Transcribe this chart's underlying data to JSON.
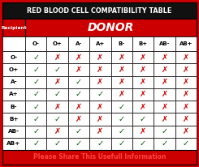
{
  "title": "RED BLOOD CELL COMPATIBILITY TABLE",
  "donor_label": "DONOR",
  "recipient_label": "Recipient",
  "footer": "Please Share This Usefull Information",
  "donors": [
    "O-",
    "O+",
    "A-",
    "A+",
    "B-",
    "B+",
    "AB-",
    "AB+"
  ],
  "recipients": [
    "O-",
    "O+",
    "A-",
    "A+",
    "B-",
    "B+",
    "AB-",
    "AB+"
  ],
  "compatibility": [
    [
      1,
      0,
      0,
      0,
      0,
      0,
      0,
      0
    ],
    [
      1,
      1,
      0,
      0,
      0,
      0,
      0,
      0
    ],
    [
      1,
      0,
      1,
      0,
      0,
      0,
      0,
      0
    ],
    [
      1,
      1,
      1,
      1,
      0,
      0,
      0,
      0
    ],
    [
      1,
      0,
      0,
      0,
      1,
      0,
      0,
      0
    ],
    [
      1,
      1,
      0,
      0,
      1,
      1,
      0,
      0
    ],
    [
      1,
      0,
      1,
      0,
      1,
      0,
      1,
      0
    ],
    [
      1,
      1,
      1,
      1,
      1,
      1,
      1,
      1
    ]
  ],
  "bg_color": "#cc0000",
  "table_bg": "#ffffff",
  "header_bg": "#cc0000",
  "title_bg": "#111111",
  "check_color": "#005500",
  "cross_color": "#cc0000",
  "title_text_color": "#ffffff",
  "donor_text_color": "#ffffff",
  "footer_text_color": "#ff4444",
  "footer_bg": "#cc0000",
  "border_color": "#000000",
  "recip_col_bg": "#dddddd"
}
